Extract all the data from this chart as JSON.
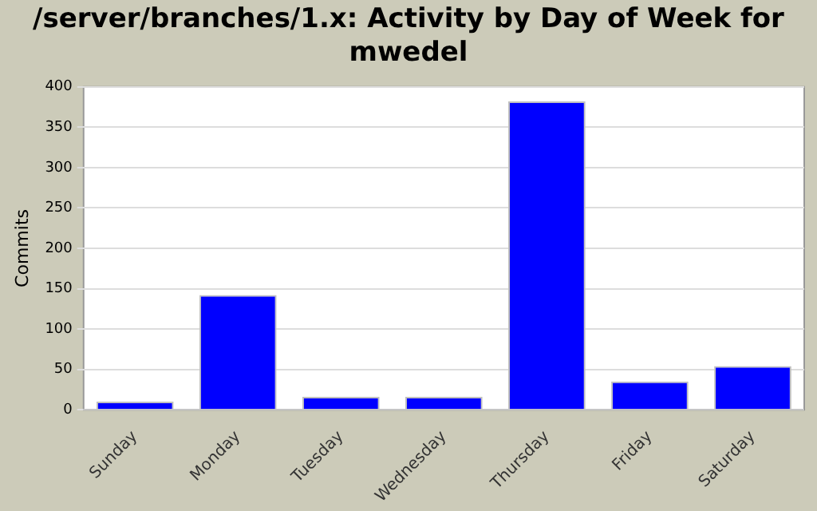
{
  "chart_data": {
    "type": "bar",
    "title": "/server/branches/1.x: Activity by Day of Week for mwedel",
    "ylabel": "Commits",
    "categories": [
      "Sunday",
      "Monday",
      "Tuesday",
      "Wednesday",
      "Thursday",
      "Friday",
      "Saturday"
    ],
    "values": [
      10,
      142,
      16,
      16,
      382,
      35,
      54
    ],
    "color": "#0000ff",
    "ylim": [
      0,
      400
    ],
    "yticks": [
      0,
      50,
      100,
      150,
      200,
      250,
      300,
      350,
      400
    ],
    "grid": "y"
  }
}
